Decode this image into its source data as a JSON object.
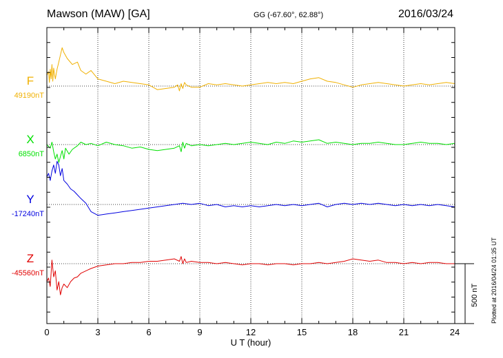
{
  "header": {
    "station": "Mawson (MAW)  [GA]",
    "coords": "GG (-67.60°,  62.88°)",
    "date": "2016/03/24"
  },
  "footnote": "Plotted at 2016/04/24 01:35 UT",
  "chart_data": {
    "type": "line",
    "xlabel": "U T (hour)",
    "xlim": [
      0,
      24
    ],
    "xticks": [
      0,
      3,
      6,
      9,
      12,
      15,
      18,
      21,
      24
    ],
    "scale_bar_label": "500 nT",
    "scale_bar_nT": 500,
    "grid": "dotted vertical lines every 3 hours, dotted baseline per trace",
    "series": [
      {
        "name": "F",
        "baseline_label": "49190nT",
        "baseline_nT": 49190,
        "color": "#f0b000",
        "x": [
          0,
          0.1,
          0.15,
          0.2,
          0.25,
          0.3,
          0.35,
          0.4,
          0.45,
          0.5,
          0.6,
          0.7,
          0.8,
          0.9,
          1.0,
          1.2,
          1.5,
          1.8,
          2.0,
          2.3,
          2.6,
          3.0,
          3.5,
          4.0,
          4.5,
          5.0,
          5.5,
          6.0,
          6.5,
          7.0,
          7.5,
          7.7,
          7.8,
          7.9,
          8.0,
          8.1,
          8.2,
          8.5,
          9.0,
          9.5,
          10.0,
          10.5,
          11.0,
          11.5,
          12.0,
          12.5,
          13.0,
          13.5,
          14.0,
          14.5,
          15.0,
          15.5,
          16.0,
          16.5,
          17.0,
          17.5,
          18.0,
          18.5,
          19.0,
          19.5,
          20.0,
          20.5,
          21.0,
          21.5,
          22.0,
          22.5,
          23.0,
          23.5,
          24.0
        ],
        "y": [
          90,
          120,
          30,
          140,
          60,
          180,
          40,
          150,
          100,
          60,
          140,
          200,
          260,
          320,
          280,
          230,
          180,
          200,
          130,
          100,
          130,
          60,
          40,
          20,
          40,
          30,
          20,
          10,
          -30,
          -20,
          -10,
          10,
          -40,
          20,
          -20,
          30,
          10,
          -10,
          -10,
          20,
          10,
          20,
          10,
          0,
          10,
          20,
          30,
          20,
          30,
          20,
          40,
          60,
          70,
          40,
          30,
          10,
          -10,
          10,
          20,
          30,
          20,
          10,
          0,
          10,
          20,
          10,
          20,
          30,
          20
        ]
      },
      {
        "name": "X",
        "baseline_label": "6850nT",
        "baseline_nT": 6850,
        "color": "#00e000",
        "x": [
          0,
          0.2,
          0.3,
          0.4,
          0.5,
          0.6,
          0.7,
          0.8,
          0.9,
          1.0,
          1.1,
          1.3,
          1.5,
          1.8,
          2.0,
          2.3,
          2.6,
          3.0,
          3.5,
          4.0,
          4.5,
          5.0,
          5.5,
          6.0,
          6.5,
          7.0,
          7.5,
          7.8,
          7.9,
          8.0,
          8.1,
          8.2,
          8.5,
          9.0,
          9.5,
          10.0,
          10.5,
          11.0,
          11.5,
          12.0,
          12.5,
          13.0,
          13.5,
          14.0,
          14.5,
          15.0,
          15.5,
          16.0,
          16.5,
          17.0,
          17.5,
          18.0,
          18.5,
          19.0,
          19.5,
          20.0,
          20.5,
          21.0,
          21.5,
          22.0,
          22.5,
          23.0,
          23.5,
          24.0
        ],
        "y": [
          0,
          -30,
          20,
          -60,
          -120,
          -80,
          -150,
          -100,
          -50,
          -120,
          -30,
          -80,
          -40,
          -10,
          20,
          0,
          10,
          -10,
          20,
          0,
          -10,
          -30,
          -20,
          -40,
          -50,
          -40,
          -30,
          -10,
          -60,
          20,
          -30,
          10,
          -10,
          0,
          -10,
          0,
          10,
          0,
          10,
          20,
          10,
          0,
          20,
          10,
          30,
          20,
          30,
          40,
          10,
          20,
          10,
          0,
          10,
          10,
          20,
          10,
          0,
          0,
          10,
          20,
          10,
          10,
          0,
          10
        ]
      },
      {
        "name": "Y",
        "baseline_label": "-17240nT",
        "baseline_nT": -17240,
        "color": "#0000e0",
        "x": [
          0,
          0.1,
          0.2,
          0.3,
          0.4,
          0.5,
          0.6,
          0.7,
          0.8,
          0.9,
          1.0,
          1.2,
          1.4,
          1.6,
          1.8,
          2.0,
          2.3,
          2.6,
          3.0,
          3.5,
          4.0,
          4.5,
          5.0,
          5.5,
          6.0,
          6.5,
          7.0,
          7.5,
          8.0,
          8.5,
          9.0,
          9.5,
          10.0,
          10.5,
          11.0,
          11.5,
          12.0,
          12.5,
          13.0,
          13.5,
          14.0,
          14.5,
          15.0,
          15.5,
          16.0,
          16.5,
          17.0,
          17.5,
          18.0,
          18.5,
          19.0,
          19.5,
          20.0,
          20.5,
          21.0,
          21.5,
          22.0,
          22.5,
          23.0,
          23.5,
          24.0
        ],
        "y": [
          230,
          260,
          200,
          280,
          330,
          260,
          360,
          330,
          240,
          300,
          200,
          170,
          130,
          110,
          80,
          50,
          10,
          -60,
          -90,
          -80,
          -70,
          -60,
          -50,
          -40,
          -30,
          -20,
          -10,
          0,
          10,
          0,
          10,
          -10,
          0,
          -20,
          -10,
          -20,
          -10,
          -20,
          -10,
          0,
          -10,
          0,
          -10,
          0,
          10,
          -20,
          0,
          10,
          0,
          10,
          0,
          10,
          0,
          -10,
          0,
          -10,
          0,
          -10,
          0,
          -10,
          -20
        ]
      },
      {
        "name": "Z",
        "baseline_label": "-45560nT",
        "baseline_nT": -45560,
        "color": "#e00000",
        "x": [
          0,
          0.1,
          0.2,
          0.3,
          0.4,
          0.5,
          0.6,
          0.7,
          0.8,
          0.9,
          1.0,
          1.2,
          1.4,
          1.6,
          1.8,
          2.0,
          2.3,
          2.6,
          3.0,
          3.5,
          4.0,
          4.5,
          5.0,
          5.5,
          6.0,
          6.5,
          7.0,
          7.5,
          7.8,
          7.9,
          8.0,
          8.1,
          8.2,
          8.5,
          9.0,
          9.5,
          10.0,
          10.5,
          11.0,
          11.5,
          12.0,
          12.5,
          13.0,
          13.5,
          14.0,
          14.5,
          15.0,
          15.5,
          16.0,
          16.5,
          17.0,
          17.5,
          18.0,
          18.5,
          19.0,
          19.5,
          20.0,
          20.5,
          21.0,
          21.5,
          22.0,
          22.5,
          23.0,
          23.5,
          24.0
        ],
        "y": [
          -150,
          -120,
          -190,
          30,
          -110,
          -60,
          -220,
          -150,
          -260,
          -200,
          -170,
          -200,
          -150,
          -120,
          -110,
          -80,
          -60,
          -40,
          -20,
          -10,
          0,
          0,
          10,
          10,
          20,
          20,
          30,
          40,
          20,
          60,
          0,
          40,
          10,
          20,
          10,
          10,
          0,
          10,
          0,
          -10,
          0,
          0,
          -10,
          0,
          0,
          -10,
          0,
          0,
          10,
          0,
          10,
          20,
          40,
          30,
          20,
          30,
          10,
          10,
          0,
          10,
          0,
          10,
          10,
          0,
          0
        ]
      }
    ]
  }
}
